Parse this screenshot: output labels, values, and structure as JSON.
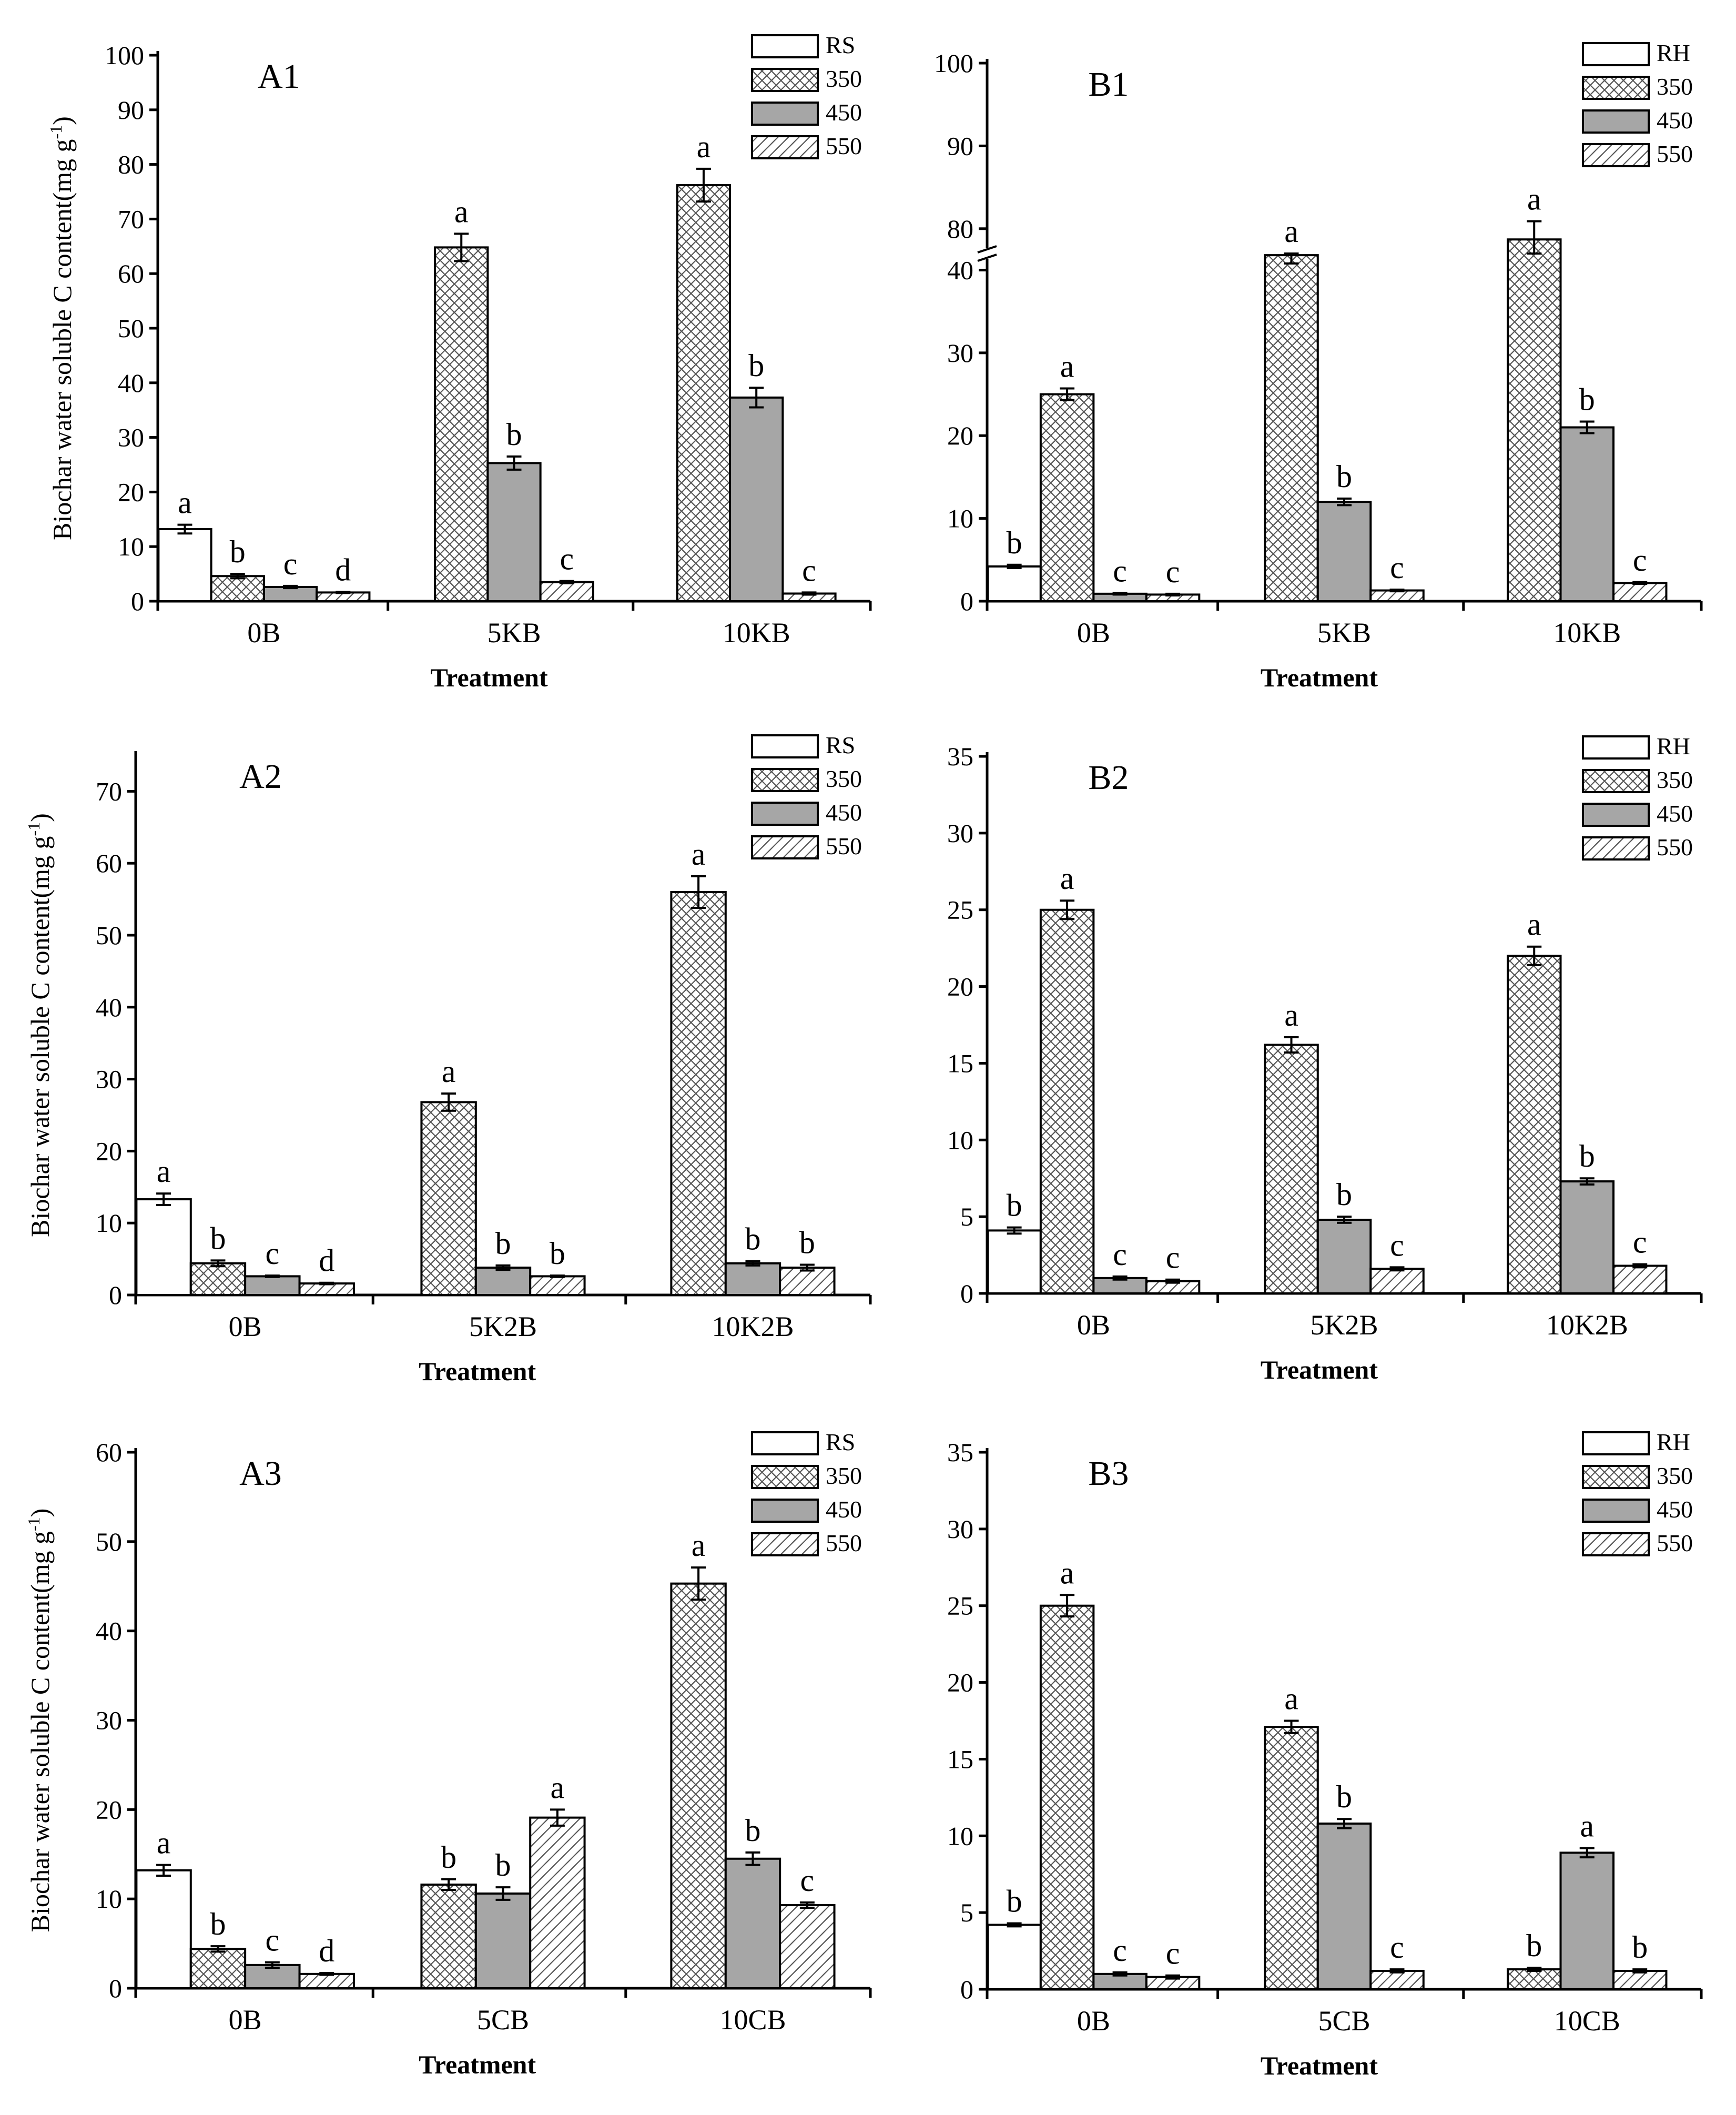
{
  "colors": {
    "axis": "#000000",
    "solid_fill": "#a6a6a6",
    "blank_fill": "#ffffff",
    "hatch_stroke": "#555555"
  },
  "chart_data": [
    {
      "id": "A1",
      "panel_label": "A1",
      "type": "bar",
      "xlabel": "Treatment",
      "ylabel": "Biochar water soluble  C content(mg g",
      "ylabel_sup": "-1",
      "ylabel_tail": ")",
      "ylim": [
        0,
        100
      ],
      "yticks": [
        0,
        10,
        20,
        30,
        40,
        50,
        60,
        70,
        80,
        90,
        100
      ],
      "legend_position": "top-right",
      "categories": [
        "0B",
        "5KB",
        "10KB"
      ],
      "series": [
        {
          "name": "RS",
          "pattern": "blank",
          "values": [
            13.2,
            null,
            null
          ],
          "errors": [
            0.8,
            null,
            null
          ],
          "letters": [
            "a",
            null,
            null
          ]
        },
        {
          "name": "350",
          "pattern": "crosshatch",
          "values": [
            4.6,
            64.8,
            76.2
          ],
          "errors": [
            0.4,
            2.5,
            3.0
          ],
          "letters": [
            "b",
            "a",
            "a"
          ]
        },
        {
          "name": "450",
          "pattern": "solid",
          "values": [
            2.6,
            25.3,
            37.3
          ],
          "errors": [
            0.2,
            1.2,
            1.8
          ],
          "letters": [
            "c",
            "b",
            "b"
          ]
        },
        {
          "name": "550",
          "pattern": "diagonal",
          "values": [
            1.6,
            3.5,
            1.4
          ],
          "errors": [
            0.1,
            0.2,
            0.2
          ],
          "letters": [
            "d",
            "c",
            "c"
          ]
        }
      ]
    },
    {
      "id": "B1",
      "panel_label": "B1",
      "type": "bar",
      "xlabel": "Treatment",
      "ylabel": "",
      "ylim": [
        0,
        100
      ],
      "axis_break": {
        "from": 42,
        "to": 77
      },
      "yticks": [
        0,
        10,
        20,
        30,
        40,
        80,
        90,
        100
      ],
      "legend_position": "top-right",
      "categories": [
        "0B",
        "5KB",
        "10KB"
      ],
      "series": [
        {
          "name": "RH",
          "pattern": "blank",
          "values": [
            4.2,
            null,
            null
          ],
          "errors": [
            0.2,
            null,
            null
          ],
          "letters": [
            "b",
            null,
            null
          ]
        },
        {
          "name": "350",
          "pattern": "crosshatch",
          "values": [
            25.0,
            41.8,
            78.7
          ],
          "errors": [
            0.7,
            1.0,
            2.2
          ],
          "letters": [
            "a",
            "a",
            "a"
          ]
        },
        {
          "name": "450",
          "pattern": "solid",
          "values": [
            0.9,
            12.0,
            21.0
          ],
          "errors": [
            0.1,
            0.4,
            0.7
          ],
          "letters": [
            "c",
            "b",
            "b"
          ]
        },
        {
          "name": "550",
          "pattern": "diagonal",
          "values": [
            0.8,
            1.3,
            2.2
          ],
          "errors": [
            0.1,
            0.1,
            0.1
          ],
          "letters": [
            "c",
            "c",
            "c"
          ]
        }
      ]
    },
    {
      "id": "A2",
      "panel_label": "A2",
      "type": "bar",
      "xlabel": "Treatment",
      "ylabel": "Biochar water soluble  C content(mg g",
      "ylabel_sup": "-1",
      "ylabel_tail": ")",
      "ylim": [
        0,
        75
      ],
      "yticks": [
        0,
        10,
        20,
        30,
        40,
        50,
        60,
        70
      ],
      "legend_position": "top-right",
      "categories": [
        "0B",
        "5K2B",
        "10K2B"
      ],
      "series": [
        {
          "name": "RS",
          "pattern": "blank",
          "values": [
            13.3,
            null,
            null
          ],
          "errors": [
            0.8,
            null,
            null
          ],
          "letters": [
            "a",
            null,
            null
          ]
        },
        {
          "name": "350",
          "pattern": "crosshatch",
          "values": [
            4.4,
            26.8,
            56.0
          ],
          "errors": [
            0.4,
            1.2,
            2.2
          ],
          "letters": [
            "b",
            "a",
            "a"
          ]
        },
        {
          "name": "450",
          "pattern": "solid",
          "values": [
            2.6,
            3.8,
            4.4
          ],
          "errors": [
            0.1,
            0.3,
            0.3
          ],
          "letters": [
            "c",
            "b",
            "b"
          ]
        },
        {
          "name": "550",
          "pattern": "diagonal",
          "values": [
            1.6,
            2.6,
            3.8
          ],
          "errors": [
            0.1,
            0.1,
            0.4
          ],
          "letters": [
            "d",
            "b",
            "b"
          ]
        }
      ]
    },
    {
      "id": "B2",
      "panel_label": "B2",
      "type": "bar",
      "xlabel": "Treatment",
      "ylabel": "",
      "ylim": [
        0,
        35
      ],
      "yticks": [
        0,
        5,
        10,
        15,
        20,
        25,
        30,
        35
      ],
      "legend_position": "top-right",
      "categories": [
        "0B",
        "5K2B",
        "10K2B"
      ],
      "series": [
        {
          "name": "RH",
          "pattern": "blank",
          "values": [
            4.1,
            null,
            null
          ],
          "errors": [
            0.2,
            null,
            null
          ],
          "letters": [
            "b",
            null,
            null
          ]
        },
        {
          "name": "350",
          "pattern": "crosshatch",
          "values": [
            25.0,
            16.2,
            22.0
          ],
          "errors": [
            0.6,
            0.5,
            0.6
          ],
          "letters": [
            "a",
            "a",
            "a"
          ]
        },
        {
          "name": "450",
          "pattern": "solid",
          "values": [
            1.0,
            4.8,
            7.3
          ],
          "errors": [
            0.1,
            0.2,
            0.2
          ],
          "letters": [
            "c",
            "b",
            "b"
          ]
        },
        {
          "name": "550",
          "pattern": "diagonal",
          "values": [
            0.8,
            1.6,
            1.8
          ],
          "errors": [
            0.1,
            0.1,
            0.1
          ],
          "letters": [
            "c",
            "c",
            "c"
          ]
        }
      ]
    },
    {
      "id": "A3",
      "panel_label": "A3",
      "type": "bar",
      "xlabel": "Treatment",
      "ylabel": "Biochar water soluble C content(mg g",
      "ylabel_sup": "-1",
      "ylabel_tail": ")",
      "ylim": [
        0,
        60
      ],
      "yticks": [
        0,
        10,
        20,
        30,
        40,
        50,
        60
      ],
      "legend_position": "top-right",
      "categories": [
        "0B",
        "5CB",
        "10CB"
      ],
      "series": [
        {
          "name": "RS",
          "pattern": "blank",
          "values": [
            13.2,
            null,
            null
          ],
          "errors": [
            0.6,
            null,
            null
          ],
          "letters": [
            "a",
            null,
            null
          ]
        },
        {
          "name": "350",
          "pattern": "crosshatch",
          "values": [
            4.4,
            11.6,
            45.3
          ],
          "errors": [
            0.3,
            0.6,
            1.8
          ],
          "letters": [
            "b",
            "b",
            "a"
          ]
        },
        {
          "name": "450",
          "pattern": "solid",
          "values": [
            2.6,
            10.6,
            14.5
          ],
          "errors": [
            0.3,
            0.7,
            0.7
          ],
          "letters": [
            "c",
            "b",
            "b"
          ]
        },
        {
          "name": "550",
          "pattern": "diagonal",
          "values": [
            1.6,
            19.1,
            9.3
          ],
          "errors": [
            0.1,
            0.9,
            0.3
          ],
          "letters": [
            "d",
            "a",
            "c"
          ]
        }
      ]
    },
    {
      "id": "B3",
      "panel_label": "B3",
      "type": "bar",
      "xlabel": "Treatment",
      "ylabel": "",
      "ylim": [
        0,
        35
      ],
      "yticks": [
        0,
        5,
        10,
        15,
        20,
        25,
        30,
        35
      ],
      "legend_position": "top-right",
      "categories": [
        "0B",
        "5CB",
        "10CB"
      ],
      "series": [
        {
          "name": "RH",
          "pattern": "blank",
          "values": [
            4.2,
            null,
            null
          ],
          "errors": [
            0.1,
            null,
            null
          ],
          "letters": [
            "b",
            null,
            null
          ]
        },
        {
          "name": "350",
          "pattern": "crosshatch",
          "values": [
            25.0,
            17.1,
            1.3
          ],
          "errors": [
            0.7,
            0.4,
            0.1
          ],
          "letters": [
            "a",
            "a",
            "b"
          ]
        },
        {
          "name": "450",
          "pattern": "solid",
          "values": [
            1.0,
            10.8,
            8.9
          ],
          "errors": [
            0.1,
            0.3,
            0.3
          ],
          "letters": [
            "c",
            "b",
            "a"
          ]
        },
        {
          "name": "550",
          "pattern": "diagonal",
          "values": [
            0.8,
            1.2,
            1.2
          ],
          "errors": [
            0.1,
            0.1,
            0.1
          ],
          "letters": [
            "c",
            "c",
            "b"
          ]
        }
      ]
    }
  ]
}
